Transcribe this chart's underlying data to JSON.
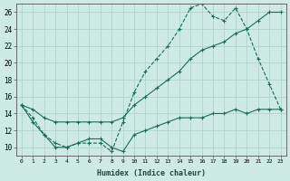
{
  "xlabel": "Humidex (Indice chaleur)",
  "bg_color": "#ceeae4",
  "line_color": "#1a6b5a",
  "grid_color": "#afd4cc",
  "xlim": [
    -0.5,
    23.5
  ],
  "ylim": [
    9,
    27
  ],
  "xticks": [
    0,
    1,
    2,
    3,
    4,
    5,
    6,
    7,
    8,
    9,
    10,
    11,
    12,
    13,
    14,
    15,
    16,
    17,
    18,
    19,
    20,
    21,
    22,
    23
  ],
  "yticks": [
    10,
    12,
    14,
    16,
    18,
    20,
    22,
    24,
    26
  ],
  "line1_x": [
    0,
    1,
    2,
    3,
    4,
    5,
    6,
    7,
    8,
    9,
    10,
    11,
    12,
    13,
    14,
    15,
    16,
    17,
    18,
    19,
    20,
    21,
    22,
    23
  ],
  "line1_y": [
    15,
    13.5,
    11.5,
    10.5,
    10,
    10.5,
    10.5,
    10.5,
    9.5,
    13,
    16.5,
    19,
    20.5,
    22,
    24,
    26.5,
    27,
    25.5,
    25,
    26.5,
    24,
    20.5,
    17.5,
    14.5
  ],
  "line2_x": [
    0,
    1,
    2,
    3,
    4,
    5,
    6,
    7,
    8,
    9,
    10,
    11,
    12,
    13,
    14,
    15,
    16,
    17,
    18,
    19,
    20,
    21,
    22,
    23
  ],
  "line2_y": [
    15,
    14.5,
    13.5,
    13,
    13,
    13,
    13,
    13,
    13,
    13.5,
    15,
    16,
    17,
    18,
    19,
    20.5,
    21.5,
    22,
    22.5,
    23.5,
    24,
    25,
    26,
    26
  ],
  "line3_x": [
    0,
    1,
    2,
    3,
    4,
    5,
    6,
    7,
    8,
    9,
    10,
    11,
    12,
    13,
    14,
    15,
    16,
    17,
    18,
    19,
    20,
    21,
    22,
    23
  ],
  "line3_y": [
    15,
    13,
    11.5,
    10,
    10,
    10.5,
    11,
    11,
    10,
    9.5,
    11.5,
    12,
    12.5,
    13,
    13.5,
    13.5,
    13.5,
    14,
    14,
    14.5,
    14,
    14.5,
    14.5,
    14.5
  ]
}
